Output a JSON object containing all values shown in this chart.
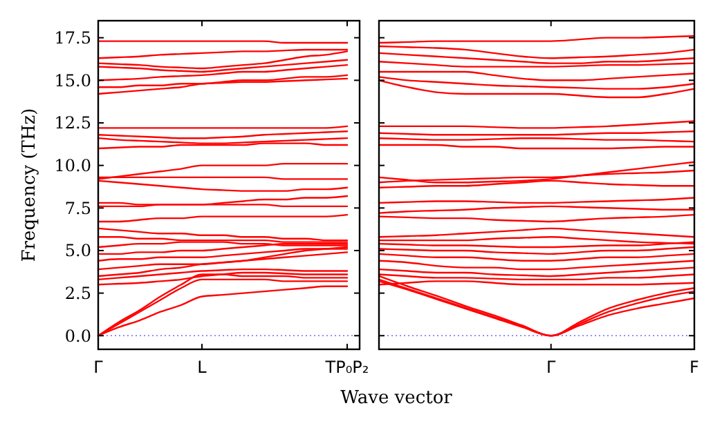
{
  "chart_data": [
    {
      "type": "line",
      "ylabel": "Frequency (THz)",
      "xlabel": "Wave vector",
      "categories": [
        "Γ",
        null,
        null,
        null,
        null,
        "L",
        null,
        null,
        null,
        null,
        null,
        null,
        "TP₀P₂"
      ],
      "ylim": [
        -0.8,
        18.5
      ],
      "yticks": [
        {
          "value": 0,
          "label": "0.0"
        },
        {
          "value": 2.5,
          "label": "2.5"
        },
        {
          "value": 5,
          "label": "5.0"
        },
        {
          "value": 7.5,
          "label": "7.5"
        },
        {
          "value": 10,
          "label": "10.0"
        },
        {
          "value": 12.5,
          "label": "12.5"
        },
        {
          "value": 15,
          "label": "15.0"
        },
        {
          "value": 17.5,
          "label": "17.5"
        }
      ],
      "ref_lines": [
        {
          "axis": "y",
          "value": 0,
          "color": "#6a6aff",
          "line_style": "dotted"
        }
      ],
      "series": [
        {
          "color": "#ff0000",
          "values": [
            0,
            0.5,
            0.9,
            1.4,
            1.8,
            2.3,
            2.4,
            2.5,
            2.6,
            2.7,
            2.8,
            2.9,
            2.9
          ]
        },
        {
          "color": "#ff0000",
          "values": [
            0,
            0.7,
            1.4,
            2.1,
            2.8,
            3.3,
            3.3,
            3.3,
            3.3,
            3.2,
            3.2,
            3.2,
            3.2
          ]
        },
        {
          "color": "#ff0000",
          "values": [
            0,
            0.8,
            1.5,
            2.3,
            3.0,
            3.6,
            3.6,
            3.5,
            3.5,
            3.5,
            3.4,
            3.4,
            3.4
          ]
        },
        {
          "color": "#ff0000",
          "values": [
            3.0,
            3.05,
            3.1,
            3.2,
            3.3,
            3.5,
            3.6,
            3.7,
            3.7,
            3.65,
            3.6,
            3.6,
            3.6
          ]
        },
        {
          "color": "#ff0000",
          "values": [
            3.3,
            3.4,
            3.5,
            3.6,
            3.7,
            3.8,
            3.85,
            3.9,
            3.9,
            3.85,
            3.8,
            3.8,
            3.8
          ]
        },
        {
          "color": "#ff0000",
          "values": [
            3.5,
            3.6,
            3.7,
            3.9,
            4.0,
            4.2,
            4.3,
            4.4,
            4.5,
            4.6,
            4.7,
            4.8,
            4.9
          ]
        },
        {
          "color": "#ff0000",
          "values": [
            3.9,
            4.0,
            4.1,
            4.2,
            4.2,
            4.2,
            4.3,
            4.4,
            4.6,
            4.8,
            5.0,
            5.1,
            5.2
          ]
        },
        {
          "color": "#ff0000",
          "values": [
            4.4,
            4.5,
            4.5,
            4.6,
            4.6,
            4.6,
            4.7,
            4.8,
            4.9,
            5.0,
            5.1,
            5.1,
            5.1
          ]
        },
        {
          "color": "#ff0000",
          "values": [
            4.8,
            4.8,
            4.9,
            4.9,
            5.0,
            5.0,
            5.1,
            5.2,
            5.3,
            5.4,
            5.4,
            5.4,
            5.4
          ]
        },
        {
          "color": "#ff0000",
          "values": [
            5.2,
            5.3,
            5.4,
            5.4,
            5.5,
            5.5,
            5.5,
            5.4,
            5.4,
            5.3,
            5.3,
            5.3,
            5.3
          ]
        },
        {
          "color": "#ff0000",
          "values": [
            5.8,
            5.8,
            5.7,
            5.7,
            5.6,
            5.6,
            5.6,
            5.6,
            5.6,
            5.5,
            5.5,
            5.5,
            5.5
          ]
        },
        {
          "color": "#ff0000",
          "values": [
            6.3,
            6.2,
            6.1,
            6.0,
            6.0,
            5.9,
            5.9,
            5.8,
            5.8,
            5.7,
            5.7,
            5.6,
            5.6
          ]
        },
        {
          "color": "#ff0000",
          "values": [
            6.7,
            6.7,
            6.8,
            6.9,
            6.9,
            7.0,
            7.0,
            7.0,
            7.0,
            7.0,
            7.0,
            7.0,
            7.1
          ]
        },
        {
          "color": "#ff0000",
          "values": [
            7.6,
            7.6,
            7.6,
            7.7,
            7.7,
            7.7,
            7.7,
            7.7,
            7.7,
            7.6,
            7.6,
            7.6,
            7.6
          ]
        },
        {
          "color": "#ff0000",
          "values": [
            7.8,
            7.8,
            7.7,
            7.7,
            7.7,
            7.7,
            7.8,
            7.9,
            8.0,
            8.0,
            8.1,
            8.1,
            8.2
          ]
        },
        {
          "color": "#ff0000",
          "values": [
            9.1,
            9.0,
            8.9,
            8.8,
            8.7,
            8.6,
            8.55,
            8.5,
            8.5,
            8.5,
            8.6,
            8.6,
            8.7
          ]
        },
        {
          "color": "#ff0000",
          "values": [
            9.3,
            9.3,
            9.3,
            9.3,
            9.3,
            9.3,
            9.3,
            9.3,
            9.3,
            9.2,
            9.2,
            9.2,
            9.2
          ]
        },
        {
          "color": "#ff0000",
          "values": [
            9.2,
            9.35,
            9.5,
            9.65,
            9.8,
            10.0,
            10.0,
            10.0,
            10.0,
            10.1,
            10.1,
            10.1,
            10.1
          ]
        },
        {
          "color": "#ff0000",
          "values": [
            11.0,
            11.05,
            11.1,
            11.1,
            11.2,
            11.2,
            11.2,
            11.2,
            11.3,
            11.3,
            11.3,
            11.2,
            11.2
          ]
        },
        {
          "color": "#ff0000",
          "values": [
            11.6,
            11.5,
            11.45,
            11.4,
            11.35,
            11.3,
            11.3,
            11.35,
            11.4,
            11.45,
            11.5,
            11.55,
            11.6
          ]
        },
        {
          "color": "#ff0000",
          "values": [
            11.8,
            11.75,
            11.7,
            11.65,
            11.6,
            11.6,
            11.65,
            11.7,
            11.8,
            11.85,
            11.9,
            11.95,
            12.0
          ]
        },
        {
          "color": "#ff0000",
          "values": [
            12.2,
            12.2,
            12.2,
            12.2,
            12.2,
            12.2,
            12.2,
            12.2,
            12.2,
            12.2,
            12.2,
            12.2,
            12.3
          ]
        },
        {
          "color": "#ff0000",
          "values": [
            14.2,
            14.3,
            14.4,
            14.5,
            14.6,
            14.8,
            14.85,
            14.9,
            14.9,
            14.95,
            15.0,
            15.05,
            15.1
          ]
        },
        {
          "color": "#ff0000",
          "values": [
            14.6,
            14.6,
            14.7,
            14.7,
            14.8,
            14.8,
            14.9,
            15.0,
            15.0,
            15.1,
            15.2,
            15.2,
            15.3
          ]
        },
        {
          "color": "#ff0000",
          "values": [
            15.0,
            15.05,
            15.1,
            15.2,
            15.25,
            15.3,
            15.4,
            15.5,
            15.5,
            15.6,
            15.7,
            15.8,
            15.9
          ]
        },
        {
          "color": "#ff0000",
          "values": [
            15.8,
            15.75,
            15.7,
            15.6,
            15.55,
            15.5,
            15.6,
            15.7,
            15.8,
            15.9,
            16.0,
            16.1,
            16.2
          ]
        },
        {
          "color": "#ff0000",
          "values": [
            16.0,
            15.95,
            15.9,
            15.8,
            15.75,
            15.7,
            15.8,
            15.9,
            16.0,
            16.2,
            16.4,
            16.5,
            16.7
          ]
        },
        {
          "color": "#ff0000",
          "values": [
            16.3,
            16.35,
            16.4,
            16.5,
            16.55,
            16.6,
            16.65,
            16.7,
            16.7,
            16.75,
            16.8,
            16.8,
            16.8
          ]
        },
        {
          "color": "#ff0000",
          "values": [
            17.3,
            17.3,
            17.3,
            17.3,
            17.3,
            17.3,
            17.3,
            17.3,
            17.3,
            17.2,
            17.2,
            17.2,
            17.2
          ]
        }
      ]
    },
    {
      "type": "line",
      "categories": [
        null,
        null,
        null,
        null,
        null,
        null,
        "Γ",
        null,
        null,
        null,
        null,
        "F"
      ],
      "ylim": [
        -0.8,
        18.5
      ],
      "tick_labels": "x",
      "yticks": [
        {
          "value": 0,
          "label": null
        },
        {
          "value": 2.5,
          "label": null
        },
        {
          "value": 5,
          "label": null
        },
        {
          "value": 7.5,
          "label": null
        },
        {
          "value": 10,
          "label": null
        },
        {
          "value": 12.5,
          "label": null
        },
        {
          "value": 15,
          "label": null
        },
        {
          "value": 17.5,
          "label": null
        }
      ],
      "ref_lines": [
        {
          "axis": "y",
          "value": 0,
          "color": "#6a6aff",
          "line_style": "dotted"
        }
      ],
      "series": [
        {
          "color": "#ff0000",
          "values": [
            3.2,
            2.7,
            2.15,
            1.6,
            1.05,
            0.5,
            0,
            0.6,
            1.2,
            1.6,
            1.9,
            2.2
          ]
        },
        {
          "color": "#ff0000",
          "values": [
            3.3,
            2.75,
            2.2,
            1.65,
            1.1,
            0.55,
            0,
            0.7,
            1.4,
            1.9,
            2.3,
            2.6
          ]
        },
        {
          "color": "#ff0000",
          "values": [
            3.5,
            2.9,
            2.35,
            1.75,
            1.2,
            0.6,
            0,
            0.8,
            1.6,
            2.1,
            2.5,
            2.8
          ]
        },
        {
          "color": "#ff0000",
          "values": [
            3.0,
            3.1,
            3.2,
            3.2,
            3.1,
            3.0,
            3.0,
            3.0,
            3.0,
            3.0,
            3.05,
            3.1
          ]
        },
        {
          "color": "#ff0000",
          "values": [
            3.6,
            3.5,
            3.4,
            3.4,
            3.35,
            3.3,
            3.3,
            3.3,
            3.4,
            3.4,
            3.5,
            3.6
          ]
        },
        {
          "color": "#ff0000",
          "values": [
            3.9,
            3.8,
            3.7,
            3.7,
            3.6,
            3.55,
            3.5,
            3.6,
            3.7,
            3.8,
            3.9,
            4.0
          ]
        },
        {
          "color": "#ff0000",
          "values": [
            4.4,
            4.3,
            4.1,
            4.0,
            4.0,
            3.9,
            3.9,
            4.0,
            4.1,
            4.2,
            4.3,
            4.4
          ]
        },
        {
          "color": "#ff0000",
          "values": [
            4.8,
            4.7,
            4.6,
            4.6,
            4.5,
            4.4,
            4.4,
            4.5,
            4.6,
            4.6,
            4.7,
            4.8
          ]
        },
        {
          "color": "#ff0000",
          "values": [
            5.1,
            5.05,
            5.0,
            5.0,
            4.9,
            4.85,
            4.8,
            4.9,
            5.0,
            5.0,
            5.1,
            5.2
          ]
        },
        {
          "color": "#ff0000",
          "values": [
            5.4,
            5.35,
            5.3,
            5.3,
            5.25,
            5.2,
            5.2,
            5.25,
            5.3,
            5.3,
            5.4,
            5.5
          ]
        },
        {
          "color": "#ff0000",
          "values": [
            5.6,
            5.6,
            5.6,
            5.6,
            5.7,
            5.75,
            5.8,
            5.7,
            5.6,
            5.5,
            5.45,
            5.4
          ]
        },
        {
          "color": "#ff0000",
          "values": [
            5.8,
            5.85,
            5.9,
            6.0,
            6.1,
            6.2,
            6.3,
            6.2,
            6.1,
            6.0,
            5.9,
            5.8
          ]
        },
        {
          "color": "#ff0000",
          "values": [
            7.0,
            6.95,
            6.9,
            6.9,
            6.8,
            6.75,
            6.7,
            6.8,
            6.9,
            6.95,
            7.0,
            7.1
          ]
        },
        {
          "color": "#ff0000",
          "values": [
            7.2,
            7.3,
            7.35,
            7.4,
            7.5,
            7.55,
            7.6,
            7.55,
            7.5,
            7.45,
            7.4,
            7.4
          ]
        },
        {
          "color": "#ff0000",
          "values": [
            7.8,
            7.85,
            7.9,
            7.9,
            7.85,
            7.8,
            7.8,
            7.85,
            7.9,
            7.95,
            8.0,
            8.1
          ]
        },
        {
          "color": "#ff0000",
          "values": [
            8.7,
            8.75,
            8.8,
            8.8,
            8.9,
            9.0,
            9.1,
            9.0,
            8.9,
            8.85,
            8.8,
            8.8
          ]
        },
        {
          "color": "#ff0000",
          "values": [
            9.0,
            9.1,
            9.15,
            9.2,
            9.25,
            9.3,
            9.3,
            9.4,
            9.5,
            9.55,
            9.6,
            9.7
          ]
        },
        {
          "color": "#ff0000",
          "values": [
            9.3,
            9.15,
            9.0,
            9.0,
            9.05,
            9.1,
            9.2,
            9.4,
            9.6,
            9.8,
            10.0,
            10.2
          ]
        },
        {
          "color": "#ff0000",
          "values": [
            11.2,
            11.2,
            11.2,
            11.1,
            11.1,
            11.0,
            11.0,
            11.0,
            11.0,
            11.05,
            11.1,
            11.1
          ]
        },
        {
          "color": "#ff0000",
          "values": [
            11.6,
            11.55,
            11.5,
            11.5,
            11.55,
            11.6,
            11.6,
            11.55,
            11.5,
            11.5,
            11.45,
            11.4
          ]
        },
        {
          "color": "#ff0000",
          "values": [
            11.9,
            11.85,
            11.8,
            11.8,
            11.8,
            11.8,
            11.8,
            11.85,
            11.9,
            11.9,
            11.95,
            12.0
          ]
        },
        {
          "color": "#ff0000",
          "values": [
            12.3,
            12.3,
            12.3,
            12.3,
            12.25,
            12.2,
            12.2,
            12.25,
            12.3,
            12.4,
            12.5,
            12.6
          ]
        },
        {
          "color": "#ff0000",
          "values": [
            15.0,
            14.6,
            14.3,
            14.2,
            14.2,
            14.2,
            14.2,
            14.1,
            14.0,
            14.0,
            14.2,
            14.5
          ]
        },
        {
          "color": "#ff0000",
          "values": [
            15.2,
            15.0,
            14.9,
            14.8,
            14.7,
            14.65,
            14.6,
            14.55,
            14.5,
            14.5,
            14.6,
            14.8
          ]
        },
        {
          "color": "#ff0000",
          "values": [
            15.5,
            15.5,
            15.5,
            15.5,
            15.3,
            15.1,
            15.0,
            15.0,
            15.1,
            15.2,
            15.3,
            15.4
          ]
        },
        {
          "color": "#ff0000",
          "values": [
            16.1,
            16.0,
            15.9,
            15.8,
            15.8,
            15.8,
            15.8,
            15.85,
            15.9,
            15.9,
            15.95,
            16.0
          ]
        },
        {
          "color": "#ff0000",
          "values": [
            16.6,
            16.5,
            16.4,
            16.3,
            16.2,
            16.1,
            16.0,
            16.0,
            16.1,
            16.1,
            16.2,
            16.3
          ]
        },
        {
          "color": "#ff0000",
          "values": [
            17.0,
            16.95,
            16.9,
            16.8,
            16.6,
            16.4,
            16.3,
            16.35,
            16.4,
            16.5,
            16.6,
            16.8
          ]
        },
        {
          "color": "#ff0000",
          "values": [
            17.2,
            17.25,
            17.3,
            17.3,
            17.3,
            17.3,
            17.3,
            17.4,
            17.5,
            17.5,
            17.55,
            17.6
          ]
        }
      ]
    }
  ]
}
